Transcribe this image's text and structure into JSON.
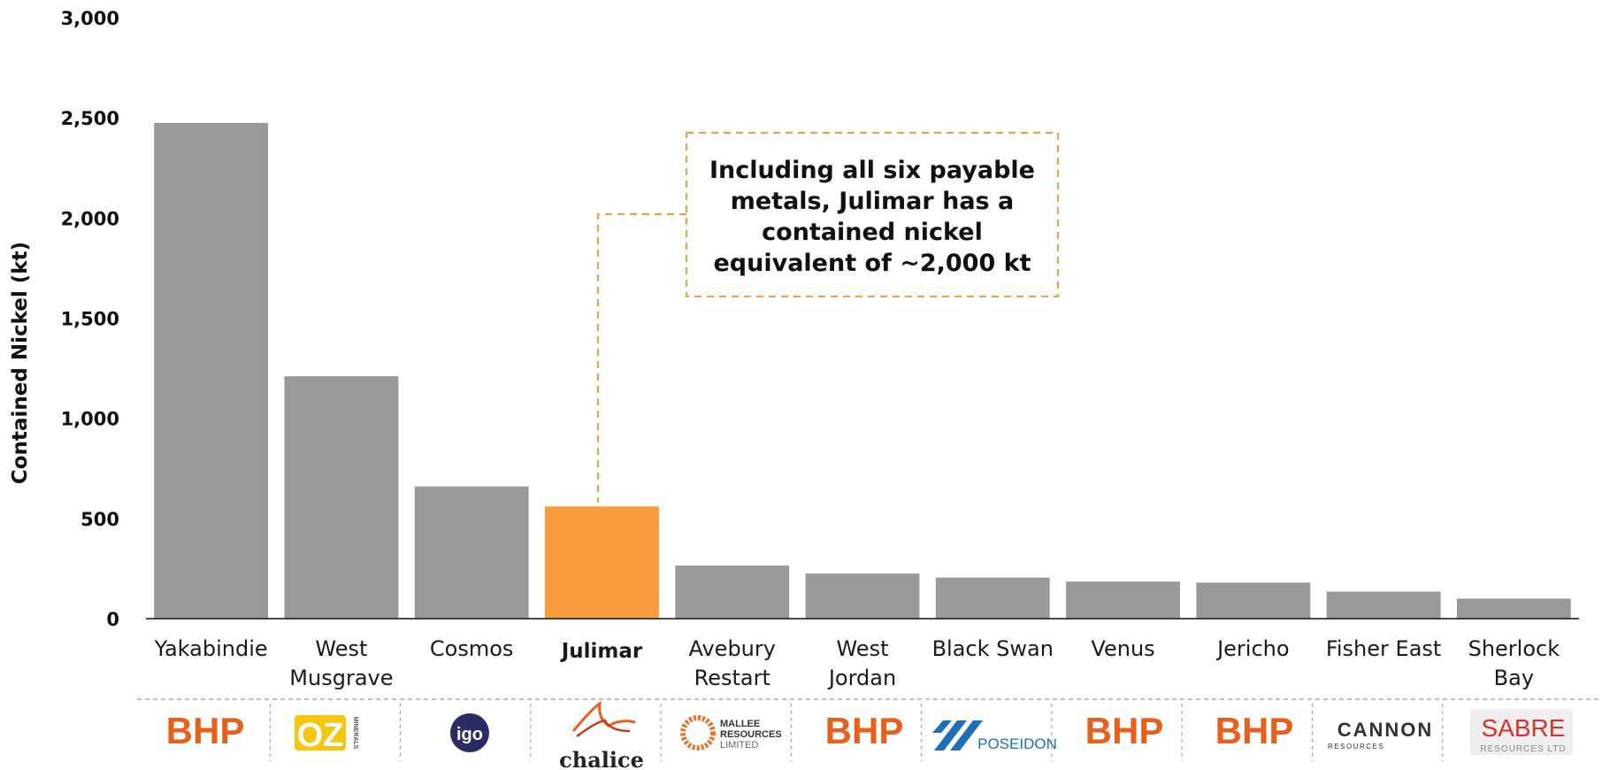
{
  "chart_data": {
    "type": "bar",
    "ylabel": "Contained Nickel (kt)",
    "ylim": [
      0,
      3000
    ],
    "yticks": [
      "0",
      "500",
      "1,000",
      "1,500",
      "2,000",
      "2,500",
      "3,000"
    ],
    "categories": [
      "Yakabindie",
      "West Musgrave",
      "Cosmos",
      "Julimar",
      "Avebury Restart",
      "West Jordan",
      "Black Swan",
      "Venus",
      "Jericho",
      "Fisher East",
      "Sherlock Bay"
    ],
    "category_lines": [
      [
        "Yakabindie"
      ],
      [
        "West",
        "Musgrave"
      ],
      [
        "Cosmos"
      ],
      [
        "Julimar"
      ],
      [
        "Avebury",
        "Restart"
      ],
      [
        "West",
        "Jordan"
      ],
      [
        "Black Swan"
      ],
      [
        "Venus"
      ],
      [
        "Jericho"
      ],
      [
        "Fisher East"
      ],
      [
        "Sherlock",
        "Bay"
      ]
    ],
    "values": [
      2475,
      1210,
      660,
      560,
      265,
      225,
      205,
      185,
      180,
      135,
      100
    ],
    "highlight_index": 3,
    "colors": {
      "bar": "#999999",
      "highlight": "#F79D40",
      "annotation_border": "#F0A04B"
    },
    "annotation": {
      "lines": [
        "Including all six payable",
        "metals, Julimar has a",
        "contained nickel",
        "equivalent of ~2,000 kt"
      ]
    },
    "owners": [
      "BHP",
      "OZ Minerals",
      "IGO",
      "Chalice",
      "Mallee Resources Limited",
      "BHP",
      "Poseidon",
      "BHP",
      "BHP",
      "Cannon Resources",
      "Sabre Resources Ltd"
    ]
  },
  "logos": {
    "bhp": "BHP",
    "oz": "OZ",
    "oz_sub": "MINERALS",
    "igo": "igo",
    "chalice": "chalice",
    "mallee": [
      "MALLEE",
      "RESOURCES",
      "LIMITED"
    ],
    "poseidon": "POSEIDON",
    "cannon": "CANNON",
    "cannon_sub": "RESOURCES",
    "sabre": "SABRE",
    "sabre_sub": "RESOURCES LTD"
  }
}
